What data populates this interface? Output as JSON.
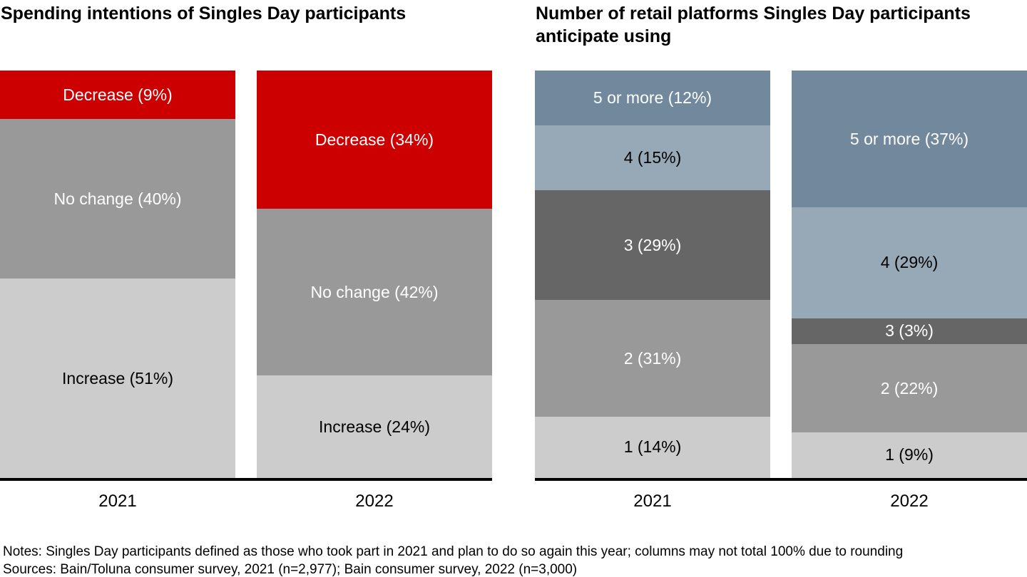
{
  "chart_data": [
    {
      "type": "bar",
      "subtype": "stacked-100-percent",
      "title": "Spending intentions of Singles Day participants",
      "title_lines": [
        "Spending intentions of Singles Day participants"
      ],
      "categories": [
        "2021",
        "2022"
      ],
      "unit": "%",
      "stack_order_top_to_bottom": [
        "Decrease",
        "No change",
        "Increase"
      ],
      "series": [
        {
          "name": "Decrease",
          "values": [
            9,
            34
          ],
          "color": "#CC0000",
          "label_color": "#FFFFFF"
        },
        {
          "name": "No change",
          "values": [
            40,
            42
          ],
          "color": "#999999",
          "label_color": "#FFFFFF"
        },
        {
          "name": "Increase",
          "values": [
            51,
            24
          ],
          "color": "#CCCCCC",
          "label_color": "#000000"
        }
      ],
      "segment_label_format": "{name} ({value}%)",
      "axis": {
        "x_labels": [
          "2021",
          "2022"
        ],
        "gridlines": false,
        "baseline_color": "#000000"
      }
    },
    {
      "type": "bar",
      "subtype": "stacked-100-percent",
      "title": "Number of retail platforms Singles Day participants anticipate using",
      "title_lines": [
        "Number of retail platforms Singles Day participants",
        "anticipate using"
      ],
      "categories": [
        "2021",
        "2022"
      ],
      "unit": "%",
      "stack_order_top_to_bottom": [
        "5 or more",
        "4",
        "3",
        "2",
        "1"
      ],
      "series": [
        {
          "name": "5 or more",
          "values": [
            12,
            37
          ],
          "color": "#71889D",
          "label_color": "#FFFFFF"
        },
        {
          "name": "4",
          "values": [
            15,
            29
          ],
          "color": "#97A8B6",
          "label_color": "#000000"
        },
        {
          "name": "3",
          "values": [
            29,
            3
          ],
          "color": "#666666",
          "label_color": "#FFFFFF"
        },
        {
          "name": "2",
          "values": [
            31,
            22
          ],
          "color": "#999999",
          "label_color": "#FFFFFF"
        },
        {
          "name": "1",
          "values": [
            14,
            9
          ],
          "color": "#CCCCCC",
          "label_color": "#000000"
        }
      ],
      "segment_label_format": "{name} ({value}%)",
      "axis": {
        "x_labels": [
          "2021",
          "2022"
        ],
        "gridlines": false,
        "baseline_color": "#000000"
      }
    }
  ],
  "footnotes": {
    "notes": "Notes: Singles Day participants defined as those who took part in 2021 and plan to do so again this year; columns may not total 100% due to rounding",
    "sources": "Sources: Bain/Toluna consumer survey, 2021 (n=2,977); Bain consumer survey, 2022 (n=3,000)"
  }
}
